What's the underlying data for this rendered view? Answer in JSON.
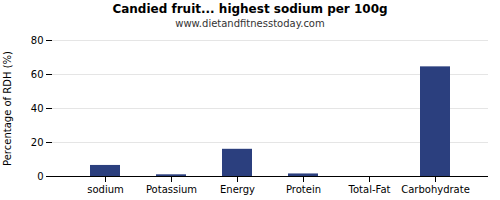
{
  "chart_data": {
    "type": "bar",
    "title": "Candied fruit... highest sodium per 100g",
    "subtitle": "www.dietandfitnesstoday.com",
    "categories": [
      "sodium",
      "Potassium",
      "Energy",
      "Protein",
      "Total-Fat",
      "Carbohydrate"
    ],
    "values": [
      6.5,
      1.0,
      16.0,
      1.5,
      0.0,
      64.5
    ],
    "color": "#2b3f7e",
    "ylabel": "Percentage of RDH (%)",
    "ylim": [
      0,
      80
    ],
    "yticks": [
      0,
      20,
      40,
      60,
      80
    ],
    "grid": true
  }
}
